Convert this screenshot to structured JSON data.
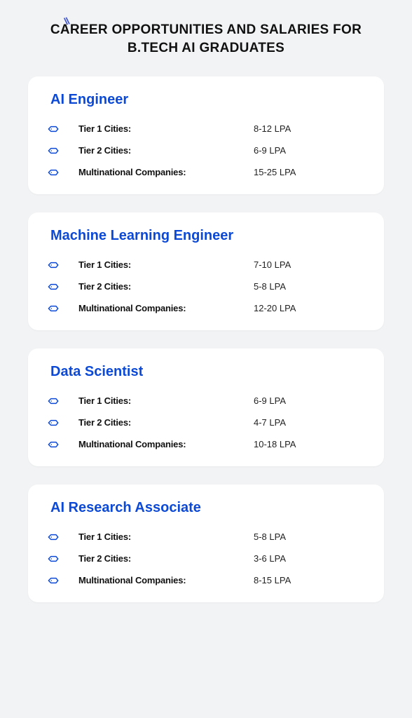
{
  "title_line1": "CAREER OPPORTUNITIES AND SALARIES FOR",
  "title_line2": "B.TECH AI GRADUATES",
  "accent_color": "#3a4fcf",
  "primary_color": "#0b49d6",
  "background_color": "#f2f3f5",
  "card_bg": "#ffffff",
  "cards": [
    {
      "title": "AI Engineer",
      "rows": [
        {
          "label": "Tier 1 Cities:",
          "value": "8-12 LPA"
        },
        {
          "label": "Tier 2 Cities:",
          "value": "6-9 LPA"
        },
        {
          "label": "Multinational Companies:",
          "value": "15-25 LPA"
        }
      ]
    },
    {
      "title": "Machine Learning Engineer",
      "rows": [
        {
          "label": "Tier 1 Cities:",
          "value": "7-10 LPA"
        },
        {
          "label": "Tier 2 Cities:",
          "value": "5-8 LPA"
        },
        {
          "label": "Multinational Companies:",
          "value": "12-20 LPA"
        }
      ]
    },
    {
      "title": "Data Scientist",
      "rows": [
        {
          "label": "Tier 1 Cities:",
          "value": "6-9 LPA"
        },
        {
          "label": "Tier 2 Cities:",
          "value": "4-7 LPA"
        },
        {
          "label": "Multinational Companies:",
          "value": "10-18 LPA"
        }
      ]
    },
    {
      "title": "AI Research Associate",
      "rows": [
        {
          "label": "Tier 1 Cities:",
          "value": "5-8 LPA"
        },
        {
          "label": "Tier 2 Cities:",
          "value": "3-6 LPA"
        },
        {
          "label": "Multinational Companies:",
          "value": "8-15 LPA"
        }
      ]
    }
  ]
}
